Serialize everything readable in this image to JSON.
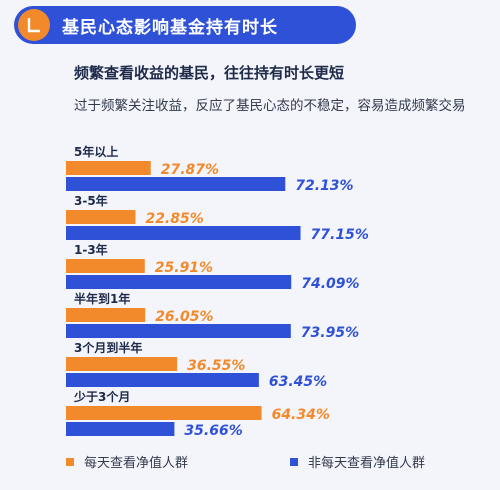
{
  "header": {
    "title": "基民心态影响基金持有时长"
  },
  "subtitle": "频繁查看收益的基民，往往持有时长更短",
  "description": "过于频繁关注收益，反应了基民心态的不稳定，容易造成频繁交易",
  "colors": {
    "orange": "#F2892A",
    "blue": "#2E51D8",
    "header_bg": "#2E51D8"
  },
  "chart_data": {
    "type": "bar",
    "orientation": "horizontal",
    "categories": [
      "5年以上",
      "3-5年",
      "1-3年",
      "半年到1年",
      "3个月到半年",
      "少于3个月"
    ],
    "series": [
      {
        "name": "每天查看净值人群",
        "values": [
          27.87,
          22.85,
          25.91,
          26.05,
          36.55,
          64.34
        ],
        "color": "#F2892A"
      },
      {
        "name": "非每天查看净值人群",
        "values": [
          72.13,
          77.15,
          74.09,
          73.95,
          63.45,
          35.66
        ],
        "color": "#2E51D8"
      }
    ],
    "value_suffix": "%",
    "xlim": [
      0,
      100
    ],
    "legend": "bottom"
  }
}
